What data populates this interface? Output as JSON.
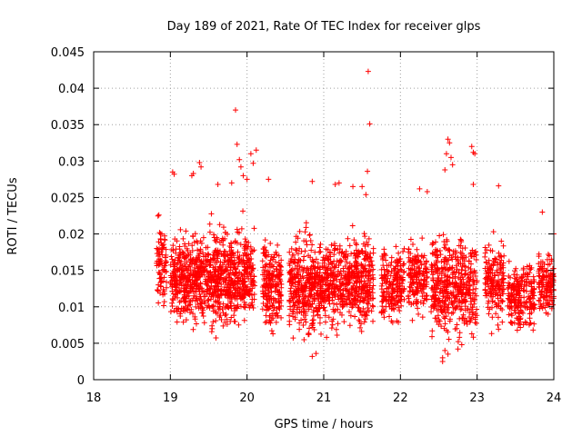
{
  "chart_data": {
    "type": "scatter",
    "title": "Day 189 of 2021, Rate Of TEC Index for receiver glps",
    "xlabel": "GPS time / hours",
    "ylabel": "ROTI / TECUs",
    "xlim": [
      18,
      24
    ],
    "ylim": [
      0,
      0.045
    ],
    "xticks": [
      18,
      19,
      20,
      21,
      22,
      23,
      24
    ],
    "xtick_labels": [
      "18",
      "19",
      "20",
      "21",
      "22",
      "23",
      "24"
    ],
    "yticks": [
      0,
      0.005,
      0.01,
      0.015,
      0.02,
      0.025,
      0.03,
      0.035,
      0.04,
      0.045
    ],
    "ytick_labels": [
      "0",
      "0.005",
      "0.01",
      "0.015",
      "0.02",
      "0.025",
      "0.03",
      "0.035",
      "0.04",
      "0.045"
    ],
    "grid": true,
    "marker": "+",
    "series_color": "#ff0000",
    "clusters": [
      {
        "x0": 18.82,
        "x1": 18.95,
        "ylo": 0.008,
        "yhi": 0.024,
        "n": 80
      },
      {
        "x0": 19.0,
        "x1": 19.5,
        "ylo": 0.006,
        "yhi": 0.022,
        "n": 420
      },
      {
        "x0": 19.5,
        "x1": 20.1,
        "ylo": 0.005,
        "yhi": 0.023,
        "n": 520
      },
      {
        "x0": 20.2,
        "x1": 20.45,
        "ylo": 0.005,
        "yhi": 0.021,
        "n": 200
      },
      {
        "x0": 20.55,
        "x1": 21.1,
        "ylo": 0.004,
        "yhi": 0.022,
        "n": 470
      },
      {
        "x0": 21.1,
        "x1": 21.65,
        "ylo": 0.005,
        "yhi": 0.022,
        "n": 430
      },
      {
        "x0": 21.75,
        "x1": 22.05,
        "ylo": 0.006,
        "yhi": 0.02,
        "n": 200
      },
      {
        "x0": 22.1,
        "x1": 22.35,
        "ylo": 0.007,
        "yhi": 0.021,
        "n": 160
      },
      {
        "x0": 22.4,
        "x1": 23.0,
        "ylo": 0.004,
        "yhi": 0.022,
        "n": 450
      },
      {
        "x0": 23.1,
        "x1": 23.35,
        "ylo": 0.006,
        "yhi": 0.021,
        "n": 170
      },
      {
        "x0": 23.4,
        "x1": 23.75,
        "ylo": 0.005,
        "yhi": 0.018,
        "n": 220
      },
      {
        "x0": 23.8,
        "x1": 24.0,
        "ylo": 0.007,
        "yhi": 0.019,
        "n": 140
      }
    ],
    "points": [
      [
        19.03,
        0.0285
      ],
      [
        19.05,
        0.0282
      ],
      [
        19.28,
        0.028
      ],
      [
        19.3,
        0.0283
      ],
      [
        19.38,
        0.0298
      ],
      [
        19.4,
        0.0292
      ],
      [
        19.62,
        0.0268
      ],
      [
        19.8,
        0.027
      ],
      [
        19.85,
        0.037
      ],
      [
        19.87,
        0.0323
      ],
      [
        19.9,
        0.0302
      ],
      [
        19.92,
        0.0292
      ],
      [
        19.95,
        0.028
      ],
      [
        20.0,
        0.0275
      ],
      [
        20.05,
        0.031
      ],
      [
        20.08,
        0.0297
      ],
      [
        20.12,
        0.0315
      ],
      [
        20.28,
        0.0275
      ],
      [
        20.85,
        0.0272
      ],
      [
        21.15,
        0.0268
      ],
      [
        21.2,
        0.027
      ],
      [
        21.38,
        0.0265
      ],
      [
        21.5,
        0.0265
      ],
      [
        21.58,
        0.0423
      ],
      [
        21.6,
        0.0351
      ],
      [
        21.57,
        0.0286
      ],
      [
        21.55,
        0.0254
      ],
      [
        22.25,
        0.0262
      ],
      [
        22.35,
        0.0258
      ],
      [
        22.58,
        0.0288
      ],
      [
        22.6,
        0.031
      ],
      [
        22.62,
        0.033
      ],
      [
        22.64,
        0.0325
      ],
      [
        22.66,
        0.0305
      ],
      [
        22.68,
        0.0295
      ],
      [
        22.93,
        0.032
      ],
      [
        22.95,
        0.0312
      ],
      [
        22.97,
        0.031
      ],
      [
        22.95,
        0.0268
      ],
      [
        23.28,
        0.0266
      ],
      [
        23.85,
        0.023
      ],
      [
        24.0,
        0.02
      ],
      [
        22.58,
        0.004
      ],
      [
        22.62,
        0.0035
      ],
      [
        22.55,
        0.003
      ],
      [
        22.75,
        0.0042
      ],
      [
        22.8,
        0.0048
      ],
      [
        20.85,
        0.0032
      ],
      [
        20.9,
        0.0036
      ],
      [
        22.55,
        0.0025
      ]
    ]
  }
}
